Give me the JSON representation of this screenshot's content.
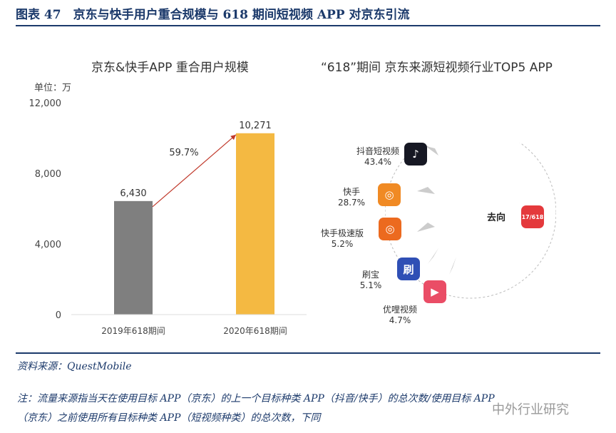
{
  "title": "图表 47　京东与快手用户重合规模与 618 期间短视频 APP 对京东引流",
  "chart_data": [
    {
      "type": "bar",
      "title": "京东&快手APP 重合用户规模",
      "unit_label": "单位：万",
      "categories": [
        "2019年618期间",
        "2020年618期间"
      ],
      "values": [
        6430,
        10271
      ],
      "value_labels": [
        "6,430",
        "10,271"
      ],
      "ylim": [
        0,
        12000
      ],
      "yticks": [
        "0",
        "4,000",
        "8,000",
        "12,000"
      ],
      "growth_annotation": "59.7%",
      "colors": [
        "#7f7f7f",
        "#f4b942"
      ],
      "grid": false
    },
    {
      "type": "diagram",
      "title": "“618”期间 京东来源短视频行业TOP5 APP",
      "target_label": "去向",
      "sources": [
        {
          "name": "抖音短视频",
          "share": "43.4%",
          "icon": "douyin-icon",
          "color": "#161823",
          "glyph": "♪"
        },
        {
          "name": "快手",
          "share": "28.7%",
          "icon": "kuaishou-icon",
          "color": "#f08a24",
          "glyph": "◎"
        },
        {
          "name": "快手极速版",
          "share": "5.2%",
          "icon": "kuaishou-lite-icon",
          "color": "#ec6a1f",
          "glyph": "◎"
        },
        {
          "name": "刷宝",
          "share": "5.1%",
          "icon": "shuabao-icon",
          "color": "#2f4fb5",
          "glyph": "刷"
        },
        {
          "name": "优哩视频",
          "share": "4.7%",
          "icon": "youli-icon",
          "color": "#ea4d66",
          "glyph": "▶"
        }
      ],
      "target_icon": {
        "icon": "jd-618-icon",
        "color": "#e4393c",
        "glyph": "17/618"
      }
    }
  ],
  "source": "资料来源：QuestMobile",
  "note_line1": "注：流量来源指当天在使用目标 APP（京东）的上一个目标种类 APP（抖音/快手）的总次数/使用目标 APP",
  "note_line2": "（京东）之前使用所有目标种类 APP（短视频种类）的总次数，下同",
  "watermark": "中外行业研究"
}
